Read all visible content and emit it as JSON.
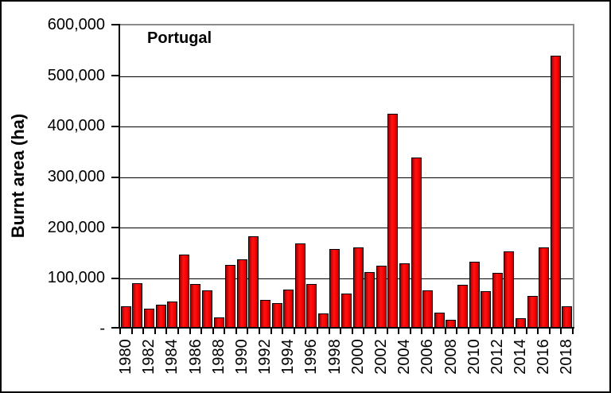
{
  "chart": {
    "title": "Portugal",
    "y_axis_title": "Burnt area (ha)"
  },
  "colors": {
    "bar_fill": "#ff0000",
    "bar_border": "#000000",
    "plot_frame_gray": "#8c8c8c",
    "gridline": "#000000",
    "axis": "#000000",
    "background": "#ffffff"
  },
  "chart_data": {
    "type": "bar",
    "title": "Portugal",
    "xlabel": "",
    "ylabel": "Burnt area (ha)",
    "ylim": [
      0,
      600000
    ],
    "y_tick_interval": 100000,
    "y_tick_labels": [
      "600,000",
      "500,000",
      "400,000",
      "300,000",
      "200,000",
      "100,000",
      "-"
    ],
    "x_tick_label_every": 2,
    "x_tick_labels_shown": [
      "1980",
      "1982",
      "1984",
      "1986",
      "1988",
      "1990",
      "1992",
      "1994",
      "1996",
      "1998",
      "2000",
      "2002",
      "2004",
      "2006",
      "2008",
      "2010",
      "2012",
      "2014",
      "2016",
      "2018"
    ],
    "grid": true,
    "legend": false,
    "categories": [
      1980,
      1981,
      1982,
      1983,
      1984,
      1985,
      1986,
      1987,
      1988,
      1989,
      1990,
      1991,
      1992,
      1993,
      1994,
      1995,
      1996,
      1997,
      1998,
      1999,
      2000,
      2001,
      2002,
      2003,
      2004,
      2005,
      2006,
      2007,
      2008,
      2009,
      2010,
      2011,
      2012,
      2013,
      2014,
      2015,
      2016,
      2017,
      2018
    ],
    "values": [
      44000,
      90000,
      40000,
      48000,
      53000,
      146000,
      89000,
      76000,
      22000,
      126000,
      137000,
      182000,
      57000,
      50000,
      77000,
      169000,
      89000,
      30000,
      158000,
      70000,
      160000,
      112000,
      125000,
      425000,
      129000,
      339000,
      76000,
      31000,
      18000,
      87000,
      133000,
      74000,
      110000,
      153000,
      20000,
      64000,
      161000,
      540000,
      44000
    ]
  }
}
